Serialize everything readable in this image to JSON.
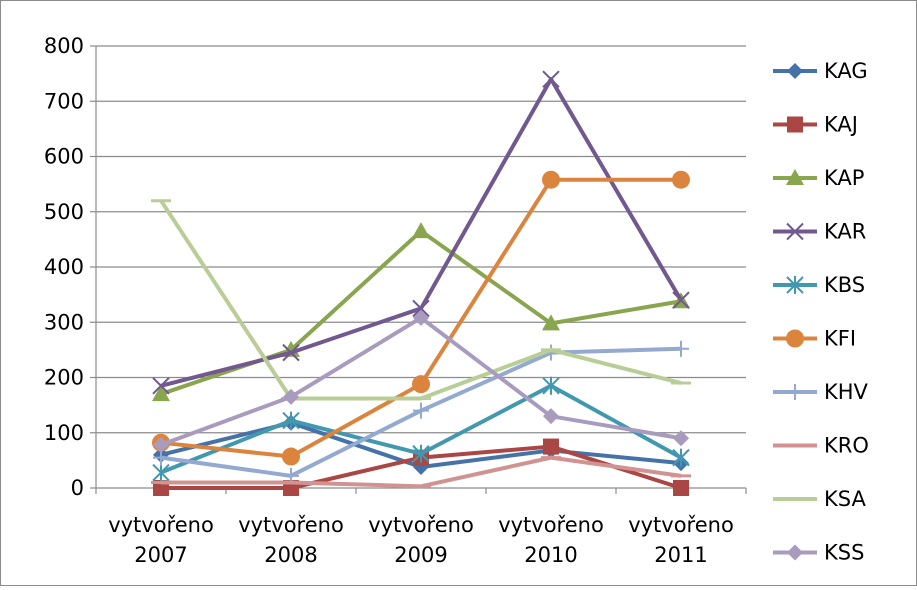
{
  "chart_data": {
    "type": "line",
    "title": "",
    "xlabel": "",
    "ylabel": "",
    "ylim": [
      0,
      800
    ],
    "yticks": [
      0,
      100,
      200,
      300,
      400,
      500,
      600,
      700,
      800
    ],
    "grid": "horizontal",
    "legend_position": "right",
    "categories": [
      [
        "vytvořeno",
        "2007"
      ],
      [
        "vytvořeno",
        "2008"
      ],
      [
        "vytvořeno",
        "2009"
      ],
      [
        "vytvořeno",
        "2010"
      ],
      [
        "vytvořeno",
        "2011"
      ]
    ],
    "series": [
      {
        "name": "KAG",
        "color": "#4572a7",
        "marker": "diamond",
        "values": [
          60,
          118,
          38,
          68,
          45
        ]
      },
      {
        "name": "KAJ",
        "color": "#aa4643",
        "marker": "square",
        "values": [
          0,
          0,
          55,
          75,
          0
        ]
      },
      {
        "name": "KAP",
        "color": "#89a54e",
        "marker": "triangle",
        "values": [
          170,
          250,
          465,
          298,
          338
        ]
      },
      {
        "name": "KAR",
        "color": "#71588f",
        "marker": "x",
        "values": [
          185,
          245,
          325,
          740,
          340
        ]
      },
      {
        "name": "KBS",
        "color": "#4198af",
        "marker": "star",
        "values": [
          28,
          122,
          62,
          185,
          55
        ]
      },
      {
        "name": "KFI",
        "color": "#db843d",
        "marker": "circle",
        "values": [
          82,
          57,
          188,
          558,
          558
        ]
      },
      {
        "name": "KHV",
        "color": "#93a9cf",
        "marker": "plus",
        "values": [
          55,
          22,
          140,
          245,
          252
        ]
      },
      {
        "name": "KRO",
        "color": "#d19392",
        "marker": "dash",
        "values": [
          10,
          10,
          3,
          55,
          22
        ]
      },
      {
        "name": "KSA",
        "color": "#b9cd96",
        "marker": "dash",
        "values": [
          520,
          162,
          162,
          250,
          190
        ]
      },
      {
        "name": "KSS",
        "color": "#a99bbd",
        "marker": "diamond",
        "values": [
          78,
          165,
          308,
          130,
          90
        ]
      }
    ]
  }
}
